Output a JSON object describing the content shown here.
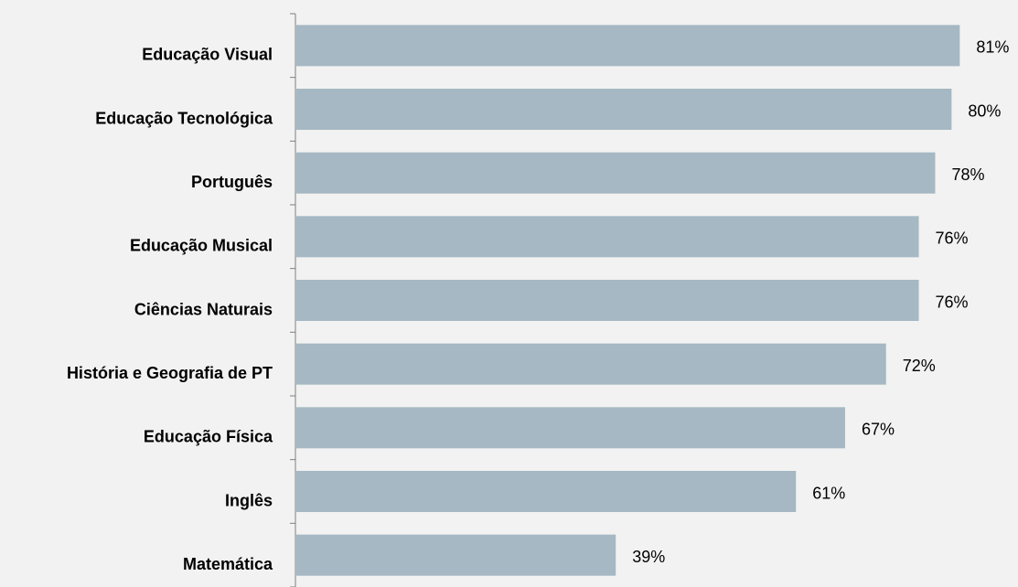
{
  "chart_data": {
    "type": "bar",
    "orientation": "horizontal",
    "categories": [
      "Educação Visual",
      "Educação Tecnológica",
      "Português",
      "Educação Musical",
      "Ciências Naturais",
      "História e Geografia de PT",
      "Educação Física",
      "Inglês",
      "Matemática"
    ],
    "values": [
      81,
      80,
      78,
      76,
      76,
      72,
      67,
      61,
      39
    ],
    "value_labels": [
      "81%",
      "80%",
      "78%",
      "76%",
      "76%",
      "72%",
      "67%",
      "61%",
      "39%"
    ],
    "color": "#a5b8c3",
    "xlim": [
      0,
      88
    ]
  }
}
